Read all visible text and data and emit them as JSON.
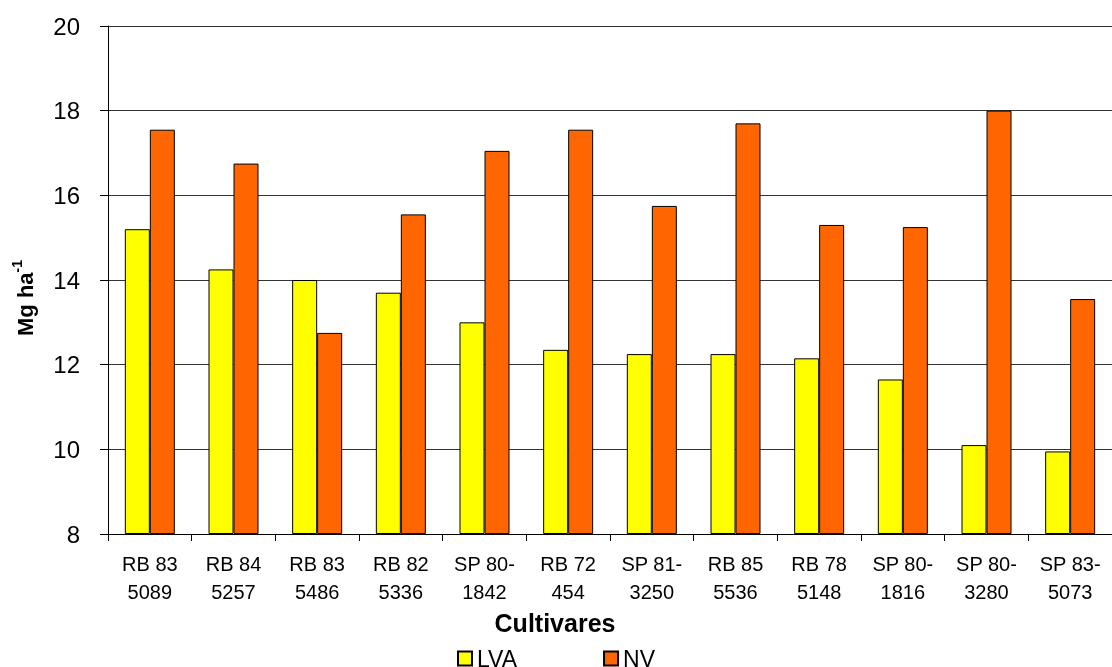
{
  "chart_data": {
    "type": "bar",
    "xlabel": "Cultivares",
    "ylabel": "Mg ha$^{-1}$",
    "categories": [
      "RB 83 5089",
      "RB 84 5257",
      "RB 83 5486",
      "RB 82 5336",
      "SP 80-1842",
      "RB 72 454",
      "SP 81-3250",
      "RB 85 5536",
      "RB 78 5148",
      "SP 80-1816",
      "SP 80-3280",
      "SP 83-5073"
    ],
    "series": [
      {
        "name": "LVA",
        "color": "#ffff00",
        "values": [
          15.2,
          14.25,
          14.0,
          13.7,
          13.0,
          12.35,
          12.25,
          12.25,
          12.15,
          11.65,
          10.1,
          9.95
        ]
      },
      {
        "name": "NV",
        "color": "#ff6600",
        "values": [
          17.55,
          16.75,
          12.75,
          15.55,
          17.05,
          17.55,
          15.75,
          17.7,
          15.3,
          15.25,
          18.0,
          13.55
        ]
      }
    ],
    "ylim": [
      8,
      20
    ],
    "yticks": [
      8,
      10,
      12,
      14,
      16,
      18,
      20
    ],
    "grid": "y",
    "legend": "bottom"
  }
}
